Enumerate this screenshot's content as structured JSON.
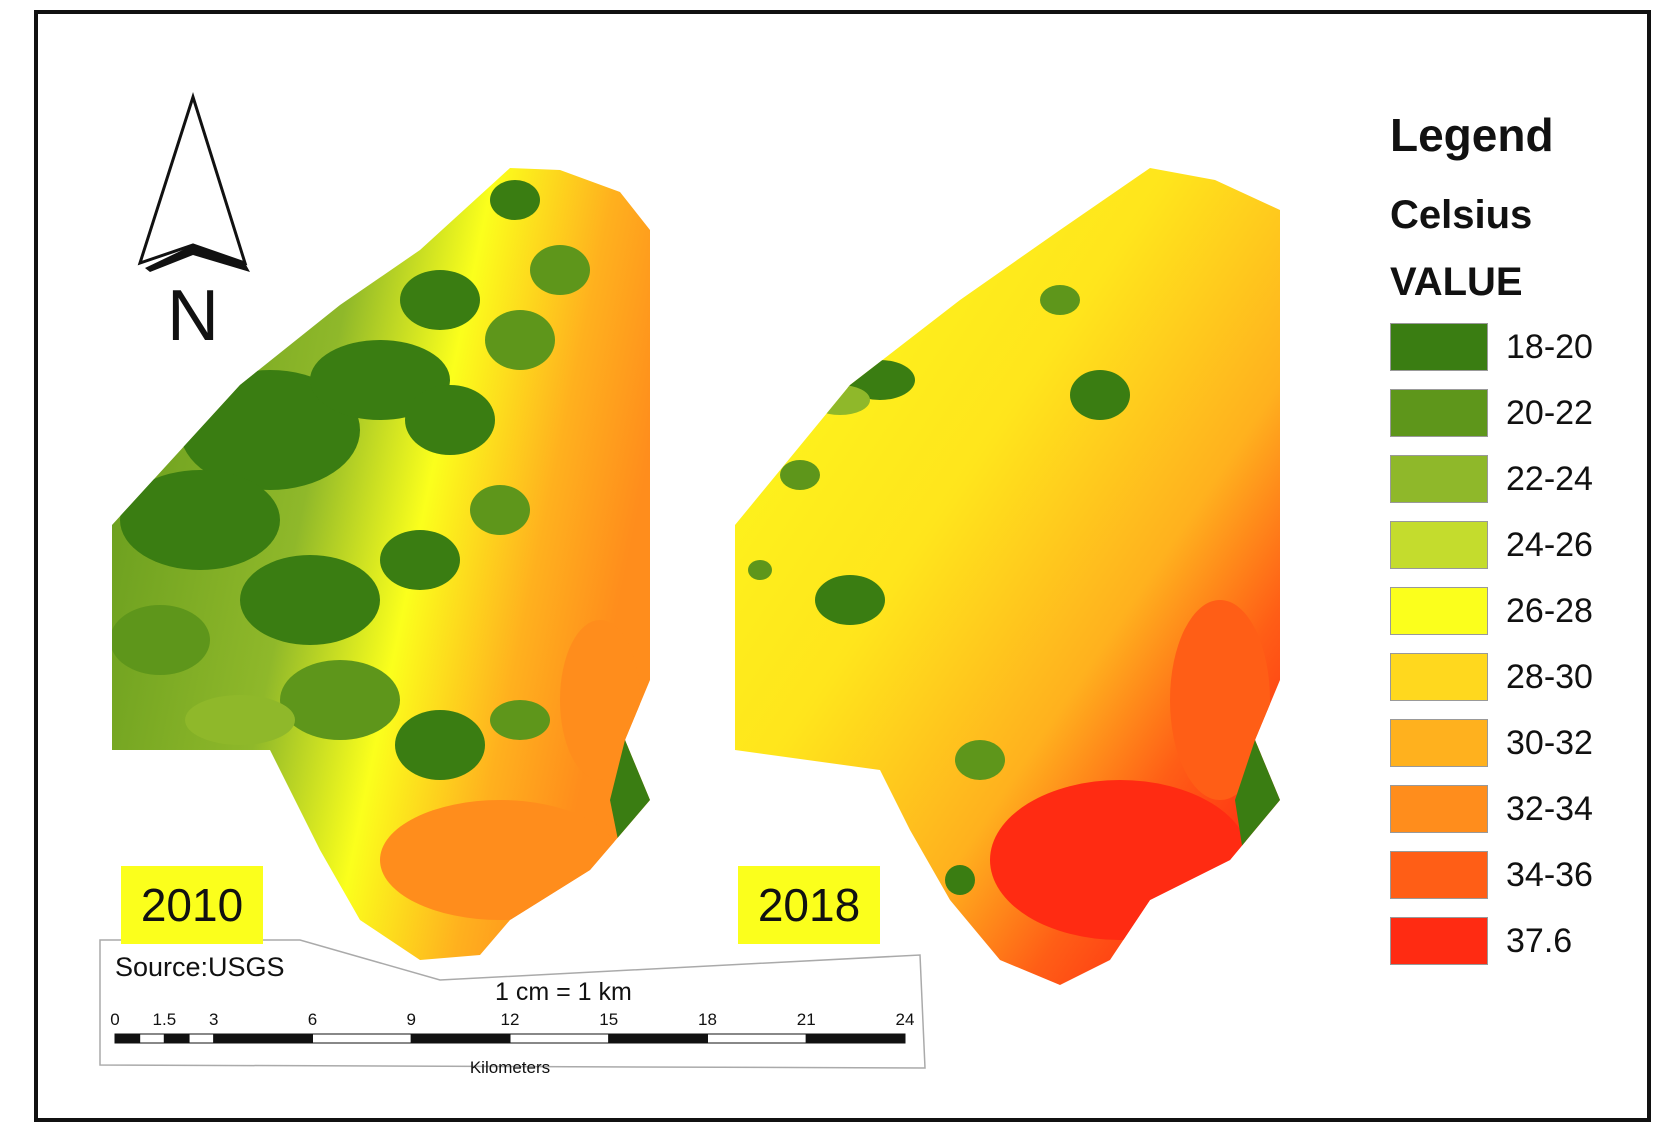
{
  "legend": {
    "title": "Legend",
    "subtitle": "Celsius",
    "field": "VALUE",
    "classes": [
      {
        "label": "18-20",
        "color": "#3a7d12"
      },
      {
        "label": "20-22",
        "color": "#5e961b"
      },
      {
        "label": "22-24",
        "color": "#8fb82a"
      },
      {
        "label": "24-26",
        "color": "#c4dc2d"
      },
      {
        "label": "26-28",
        "color": "#fbff1c"
      },
      {
        "label": "28-30",
        "color": "#ffd81e"
      },
      {
        "label": "30-32",
        "color": "#ffb11e"
      },
      {
        "label": "32-34",
        "color": "#ff8d1c"
      },
      {
        "label": "34-36",
        "color": "#ff5e16"
      },
      {
        "label": "37.6",
        "color": "#ff2b12"
      }
    ]
  },
  "maps": [
    {
      "year": "2010"
    },
    {
      "year": "2018"
    }
  ],
  "north_arrow": {
    "label": "N",
    "icon": "north-arrow-icon"
  },
  "source": "Source:USGS",
  "scale_bar": {
    "note": "1 cm = 1 km",
    "ticks": [
      "0",
      "1.5",
      "3",
      "6",
      "9",
      "12",
      "15",
      "18",
      "21",
      "24"
    ],
    "unit": "Kilometers"
  }
}
